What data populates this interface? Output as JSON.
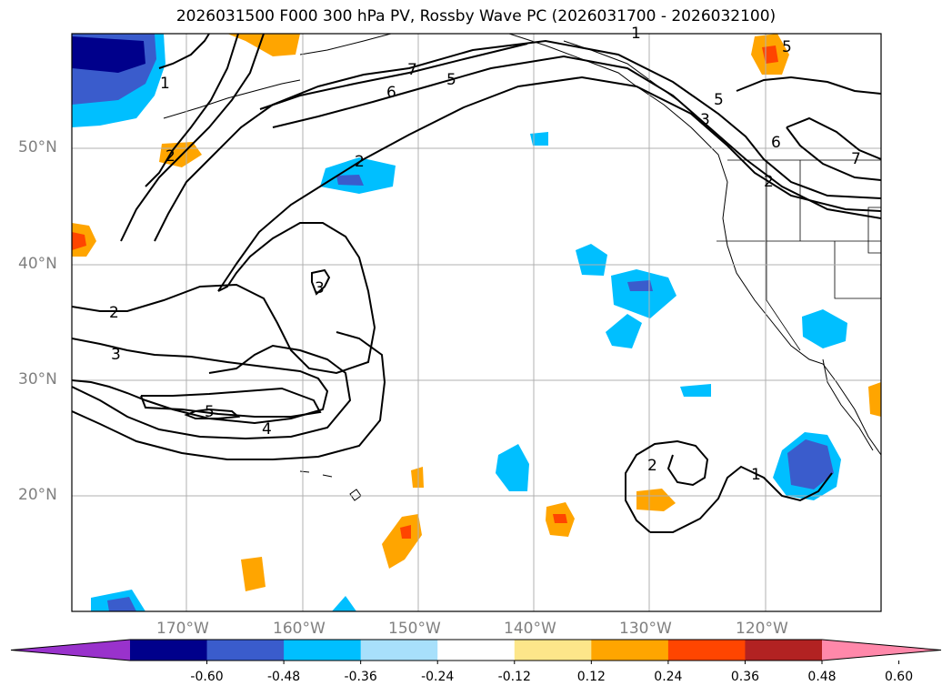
{
  "title": "2026031500 F000 300 hPa PV, Rossby Wave PC (2026031700 - 2026032100)",
  "lat_labels": [
    "50°N",
    "40°N",
    "30°N",
    "20°N"
  ],
  "lon_labels": [
    "170°W",
    "160°W",
    "150°W",
    "140°W",
    "130°W",
    "120°W"
  ],
  "contour_labels": [
    "1",
    "2",
    "5",
    "6",
    "7",
    "5",
    "5",
    "3",
    "6",
    "2",
    "2",
    "3",
    "2",
    "3",
    "5",
    "4",
    "2",
    "1",
    "1",
    "7"
  ],
  "colorbar": {
    "colors": [
      "#9932cc",
      "#00008b",
      "#3a5ccc",
      "#00bfff",
      "#a8e0fb",
      "#ffffff",
      "#fde68a",
      "#ffa500",
      "#ff4500",
      "#b22222",
      "#ff88aa"
    ],
    "tick_labels": [
      "-0.60",
      "-0.48",
      "-0.36",
      "-0.24",
      "-0.12",
      "0.12",
      "0.24",
      "0.36",
      "0.48",
      "0.60"
    ]
  }
}
